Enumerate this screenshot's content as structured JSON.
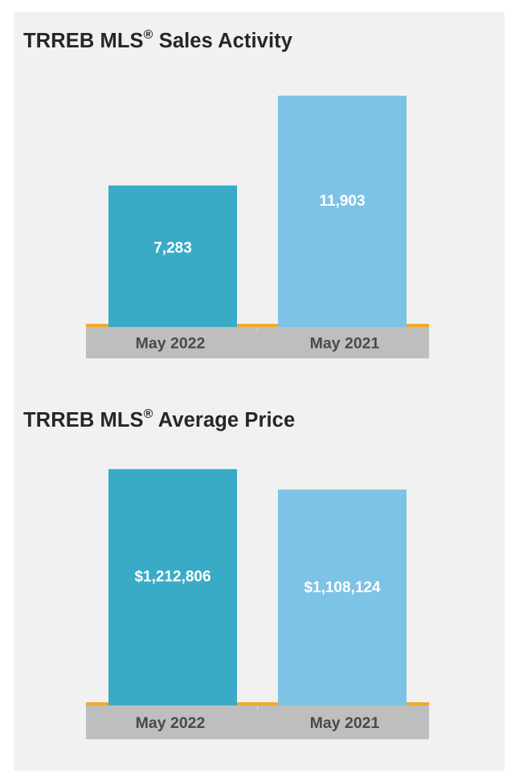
{
  "colors": {
    "panel": "#f1f1f1",
    "bar_current": "#3aabc6",
    "bar_previous": "#7dc3e5",
    "baseline": "#f0a92b",
    "axis_band": "#bebebe",
    "tick_text": "#4a4a4a",
    "title_text": "#262626",
    "value_text": "#ffffff"
  },
  "chart_data": [
    {
      "type": "bar",
      "title_main": "TRREB MLS",
      "title_reg": "®",
      "title_rest": " Sales Activity",
      "categories": [
        "May 2022",
        "May 2021"
      ],
      "values": [
        7283,
        11903
      ],
      "value_labels": [
        "7,283",
        "11,903"
      ],
      "ylim": [
        0,
        12900
      ]
    },
    {
      "type": "bar",
      "title_main": "TRREB MLS",
      "title_reg": "®",
      "title_rest": " Average Price",
      "categories": [
        "May 2022",
        "May 2021"
      ],
      "values": [
        1212806,
        1108124
      ],
      "value_labels": [
        "$1,212,806",
        "$1,108,124"
      ],
      "ylim": [
        0,
        1270000
      ]
    }
  ]
}
